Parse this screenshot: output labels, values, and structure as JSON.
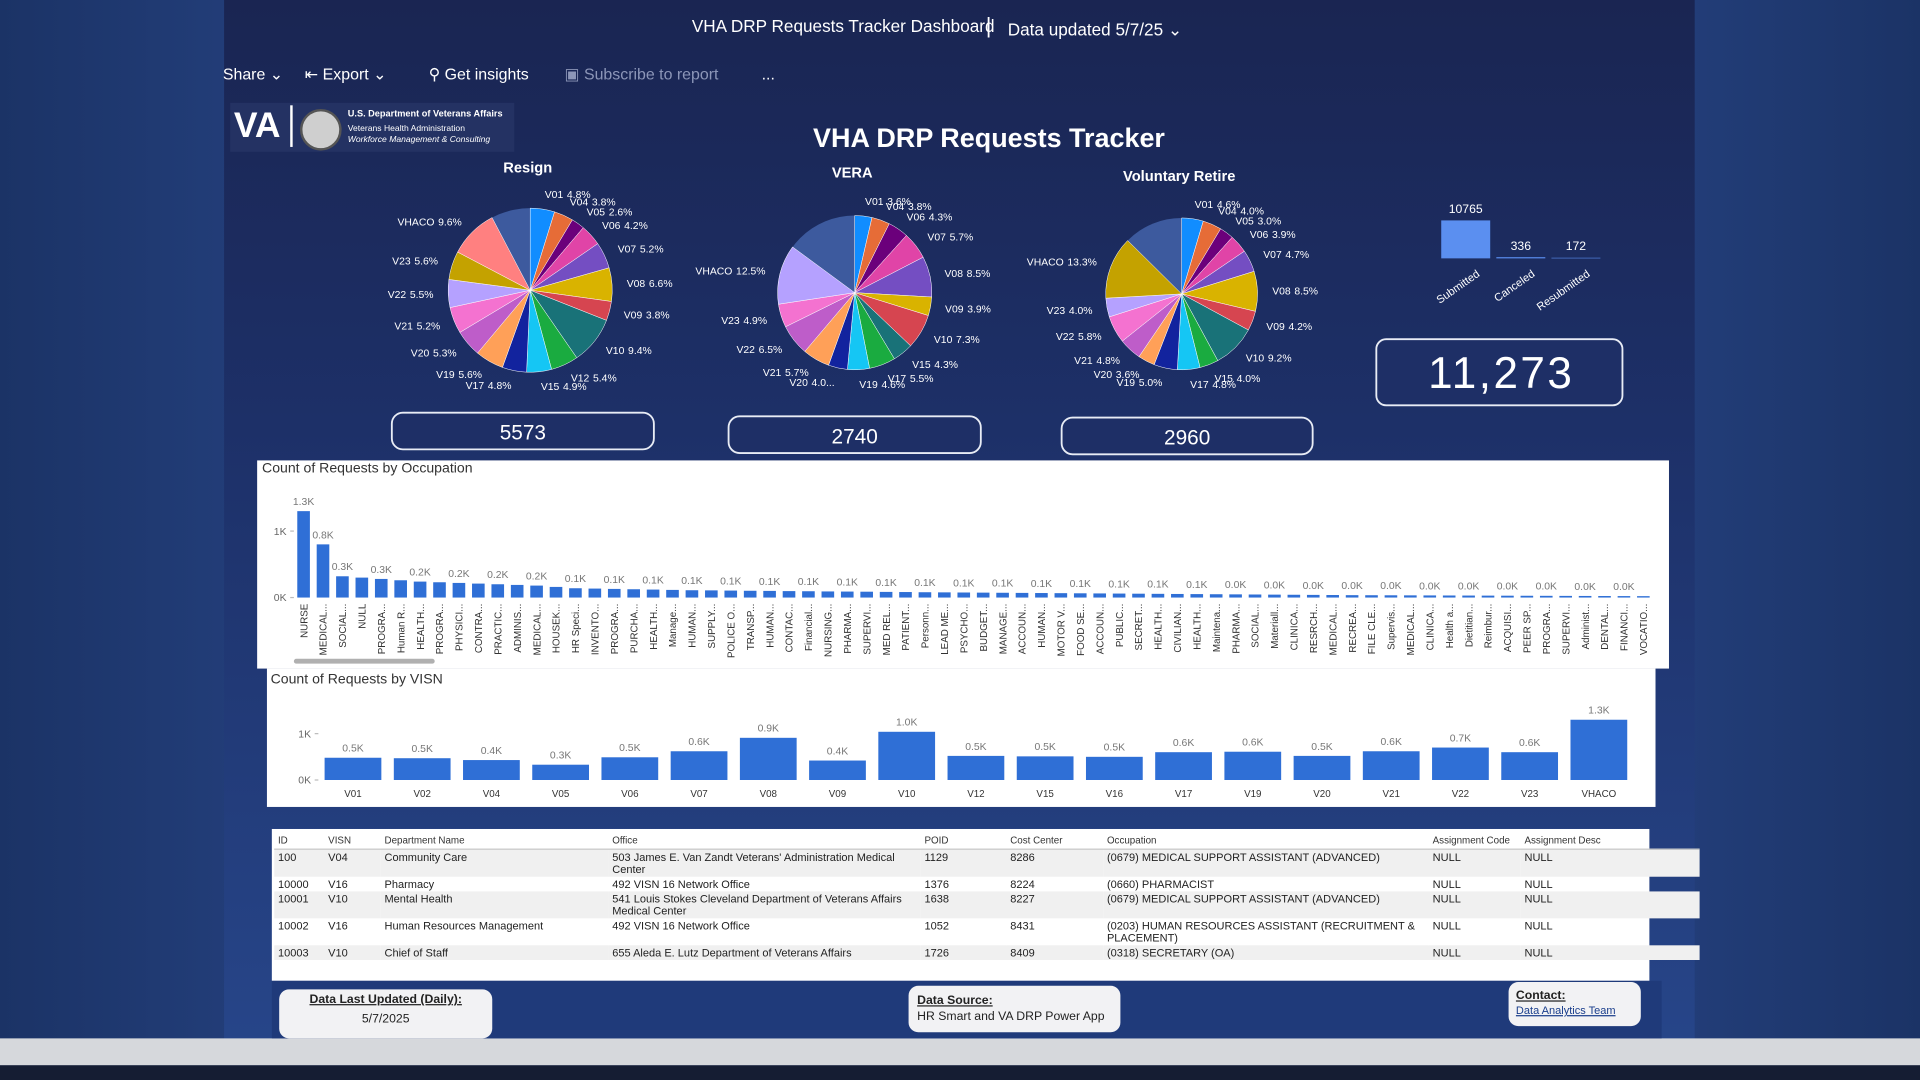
{
  "header": {
    "title": "VHA DRP Requests Tracker Dashboard",
    "updated": "Data updated 5/7/25"
  },
  "toolbar": [
    "Share",
    "Export",
    "Get insights",
    "Subscribe to report",
    "..."
  ],
  "logo": {
    "mark": "VA",
    "lines": [
      "U.S. Department of Veterans Affairs",
      "Veterans Health Administration",
      "Workforce Management & Consulting"
    ]
  },
  "title": "VHA DRP Requests Tracker",
  "palette": [
    "#118dff",
    "#e66c37",
    "#6b007b",
    "#e044a7",
    "#744ec2",
    "#d9b300",
    "#d64550",
    "#197278",
    "#1aab40",
    "#15c6f4",
    "#12239e",
    "#ffa058",
    "#be5dc9",
    "#f472d0",
    "#b5a1ff",
    "#c4a200",
    "#ff8080",
    "#4092ff"
  ],
  "pies": [
    {
      "type": "pie",
      "title": "Resign",
      "categories": [
        "V01",
        "V04",
        "V05",
        "V06",
        "V07",
        "V08",
        "V09",
        "V10",
        "V12",
        "V15",
        "V17",
        "V19",
        "V20",
        "V21",
        "V22",
        "V23",
        "VHACO"
      ],
      "values": [
        4.8,
        3.8,
        2.6,
        4.2,
        5.2,
        6.6,
        3.8,
        9.4,
        5.4,
        4.9,
        4.8,
        5.6,
        5.3,
        5.2,
        5.5,
        5.6,
        9.6
      ],
      "value_labels": [
        "4.8%",
        "3.8%",
        "2.6%",
        "4.2%",
        "5.2%",
        "6.6%",
        "3.8%",
        "9.4%",
        "5.4%",
        "4.9%",
        "4.8%",
        "5.6%",
        "5.3%",
        "5.2%",
        "5.5%",
        "5.6%",
        "9.6%"
      ],
      "total": 5573
    },
    {
      "type": "pie",
      "title": "VERA",
      "categories": [
        "V01",
        "V04",
        "V06",
        "V07",
        "V08",
        "V09",
        "V10",
        "V15",
        "V17",
        "V19",
        "V20",
        "V21",
        "V22",
        "V23",
        "VHACO"
      ],
      "values": [
        3.6,
        3.8,
        4.3,
        5.7,
        8.5,
        3.9,
        7.3,
        4.3,
        5.5,
        4.6,
        4.0,
        5.7,
        6.5,
        4.9,
        12.5
      ],
      "value_labels": [
        "3.6%",
        "3.8%",
        "4.3%",
        "5.7%",
        "8.5%",
        "3.9%",
        "7.3%",
        "4.3%",
        "5.5%",
        "4.6%",
        "4.0...",
        "5.7%",
        "6.5%",
        "4.9%",
        "12.5%"
      ],
      "total": 2740
    },
    {
      "type": "pie",
      "title": "Voluntary Retire",
      "categories": [
        "V01",
        "V04",
        "V05",
        "V06",
        "V07",
        "V08",
        "V09",
        "V10",
        "V15",
        "V17",
        "V19",
        "V20",
        "V21",
        "V22",
        "V23",
        "VHACO"
      ],
      "values": [
        4.6,
        4.0,
        3.0,
        3.9,
        4.7,
        8.5,
        4.2,
        9.2,
        4.0,
        4.8,
        5.0,
        3.6,
        4.8,
        5.8,
        4.0,
        13.3
      ],
      "value_labels": [
        "4.6%",
        "4.0%",
        "3.0%",
        "3.9%",
        "4.7%",
        "8.5%",
        "4.2%",
        "9.2%",
        "4.0%",
        "4.8%",
        "5.0%",
        "3.6%",
        "4.8%",
        "5.8%",
        "4.0%",
        "13.3%"
      ],
      "total": 2960
    }
  ],
  "status_chart": {
    "type": "bar",
    "categories": [
      "Submitted",
      "Canceled",
      "Resubmitted"
    ],
    "values": [
      10765,
      336,
      172
    ],
    "color": "#5b8ff0",
    "total": {
      "value": 11273,
      "label": "11,273"
    }
  },
  "occupation_chart": {
    "type": "bar",
    "title": "Count of Requests by Occupation",
    "color": "#2f6fd6",
    "categories": [
      "NURSE",
      "MEDICAL...",
      "SOCIAL...",
      "NULL",
      "PROGRA...",
      "Human R...",
      "HEALTH...",
      "PROGRA...",
      "PHYSICI...",
      "CONTRA...",
      "PRACTIC...",
      "ADMINIS...",
      "MEDICAL...",
      "HOUSEK...",
      "HR Speci...",
      "INVENTO...",
      "PROGRA...",
      "PURCHA...",
      "HEALTH...",
      "Manage...",
      "HUMAN...",
      "SUPPLY...",
      "POLICE O...",
      "TRANSP...",
      "HUMAN...",
      "CONTAC...",
      "Financial...",
      "NURSING...",
      "PHARMA...",
      "SUPERVI...",
      "MED REL...",
      "PATIENT...",
      "Personn...",
      "LEAD ME...",
      "PSYCHO...",
      "BUDGET...",
      "MANAGE...",
      "ACCOUN...",
      "HUMAN...",
      "MOTOR V...",
      "FOOD SE...",
      "ACCOUN...",
      "PUBLIC...",
      "SECRET...",
      "HEALTH...",
      "CIVILIAN...",
      "HEALTH...",
      "Maintena...",
      "PHARMA...",
      "SOCIAL...",
      "Materiall...",
      "CLINICA...",
      "RESRCH...",
      "MEDICAL...",
      "RECREA...",
      "FILE CLE...",
      "Supervis...",
      "MEDICAL...",
      "CLINICA...",
      "Health a...",
      "Dietitian...",
      "Reimbur...",
      "ACQUISI...",
      "PEER SP...",
      "PROGRA...",
      "SUPERVI...",
      "Administ...",
      "DENTAL...",
      "FINANCI...",
      "VOCATIO..."
    ],
    "values": [
      1300,
      800,
      320,
      300,
      280,
      260,
      240,
      230,
      220,
      210,
      200,
      190,
      180,
      160,
      140,
      135,
      130,
      125,
      120,
      115,
      110,
      108,
      105,
      102,
      100,
      97,
      95,
      92,
      90,
      88,
      85,
      83,
      80,
      78,
      76,
      74,
      72,
      70,
      68,
      66,
      64,
      62,
      60,
      58,
      56,
      54,
      52,
      50,
      48,
      46,
      44,
      42,
      40,
      38,
      36,
      35,
      34,
      33,
      32,
      31,
      30,
      29,
      28,
      27,
      26,
      25,
      24,
      23,
      22,
      21
    ],
    "value_labels": [
      "1.3K",
      "0.8K",
      "0.3K",
      null,
      "0.3K",
      null,
      "0.2K",
      null,
      "0.2K",
      null,
      "0.2K",
      null,
      "0.2K",
      null,
      "0.1K",
      null,
      "0.1K",
      null,
      "0.1K",
      null,
      "0.1K",
      null,
      "0.1K",
      null,
      "0.1K",
      null,
      "0.1K",
      null,
      "0.1K",
      null,
      "0.1K",
      null,
      "0.1K",
      null,
      "0.1K",
      null,
      "0.1K",
      null,
      "0.1K",
      null,
      "0.1K",
      null,
      "0.1K",
      null,
      "0.1K",
      null,
      "0.1K",
      null,
      "0.0K",
      null,
      "0.0K",
      null,
      "0.0K",
      null,
      "0.0K",
      null,
      "0.0K",
      null,
      "0.0K",
      null,
      "0.0K",
      null,
      "0.0K",
      null,
      "0.0K",
      null,
      "0.0K",
      null,
      "0.0K",
      null
    ],
    "ylim": [
      0,
      1400
    ],
    "yticks": [
      {
        "value": 0,
        "label": "0K"
      },
      {
        "value": 1000,
        "label": "1K"
      }
    ]
  },
  "visn_chart": {
    "type": "bar",
    "title": "Count of Requests by VISN",
    "color": "#2f6fd6",
    "categories": [
      "V01",
      "V02",
      "V04",
      "V05",
      "V06",
      "V07",
      "V08",
      "V09",
      "V10",
      "V12",
      "V15",
      "V16",
      "V17",
      "V19",
      "V20",
      "V21",
      "V22",
      "V23",
      "VHACO"
    ],
    "values": [
      480,
      470,
      430,
      330,
      490,
      620,
      910,
      420,
      1040,
      520,
      510,
      500,
      600,
      610,
      520,
      620,
      700,
      600,
      1300
    ],
    "value_labels": [
      "0.5K",
      "0.5K",
      "0.4K",
      "0.3K",
      "0.5K",
      "0.6K",
      "0.9K",
      "0.4K",
      "1.0K",
      "0.5K",
      "0.5K",
      "0.5K",
      "0.6K",
      "0.6K",
      "0.5K",
      "0.6K",
      "0.7K",
      "0.6K",
      "1.3K"
    ],
    "ylim": [
      0,
      1400
    ],
    "yticks": [
      {
        "value": 0,
        "label": "0K"
      },
      {
        "value": 1000,
        "label": "1K"
      }
    ]
  },
  "table": {
    "columns": [
      "ID",
      "VISN",
      "Department Name",
      "Office",
      "POID",
      "Cost Center",
      "Occupation",
      "Assignment Code",
      "Assignment Desc"
    ],
    "rows": [
      [
        "100",
        "V04",
        "Community Care",
        "503 James E. Van Zandt Veterans' Administration Medical Center",
        "1129",
        "8286",
        "(0679) MEDICAL SUPPORT ASSISTANT (ADVANCED)",
        "NULL",
        "NULL"
      ],
      [
        "10000",
        "V16",
        "Pharmacy",
        "492 VISN 16 Network Office",
        "1376",
        "8224",
        "(0660) PHARMACIST",
        "NULL",
        "NULL"
      ],
      [
        "10001",
        "V10",
        "Mental Health",
        "541 Louis Stokes Cleveland Department of Veterans Affairs Medical Center",
        "1638",
        "8227",
        "(0679) MEDICAL SUPPORT ASSISTANT (ADVANCED)",
        "NULL",
        "NULL"
      ],
      [
        "10002",
        "V16",
        "Human Resources Management",
        "492 VISN 16 Network Office",
        "1052",
        "8431",
        "(0203) HUMAN RESOURCES ASSISTANT (RECRUITMENT & PLACEMENT)",
        "NULL",
        "NULL"
      ],
      [
        "10003",
        "V10",
        "Chief of Staff",
        "655 Aleda E. Lutz Department of Veterans Affairs",
        "1726",
        "8409",
        "(0318) SECRETARY (OA)",
        "NULL",
        "NULL"
      ]
    ]
  },
  "footer": {
    "updated": {
      "label": "Data Last Updated (Daily):",
      "value": "5/7/2025"
    },
    "source": {
      "label": "Data Source:",
      "value": "HR Smart and VA DRP Power App"
    },
    "contact": {
      "label": "Contact:",
      "value": "Data Analytics Team"
    }
  }
}
